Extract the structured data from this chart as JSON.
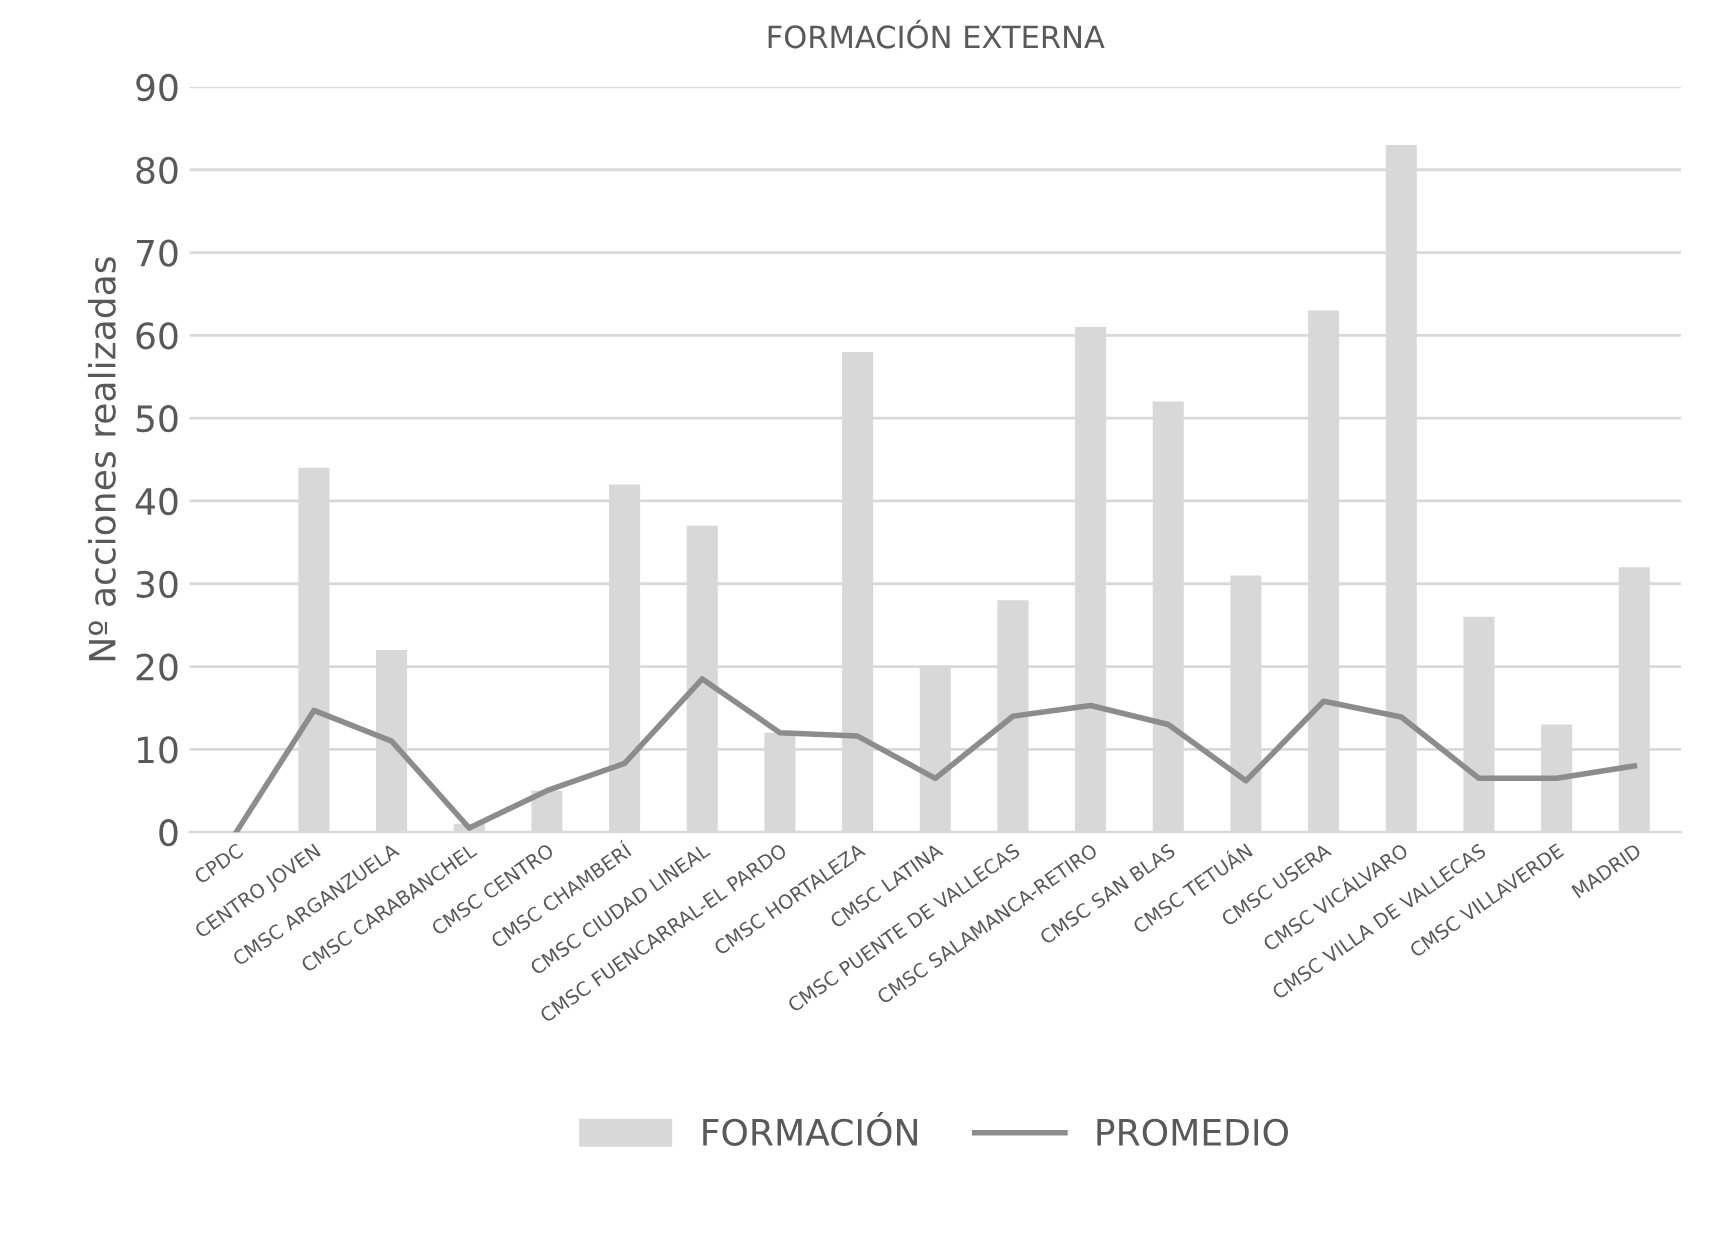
{
  "chart_data": {
    "type": "bar",
    "title": "FORMACIÓN EXTERNA",
    "ylabel": "Nº acciones realizadas",
    "categories": [
      "CPDC",
      "CENTRO JOVEN",
      "CMSC ARGANZUELA",
      "CMSC CARABANCHEL",
      "CMSC CENTRO",
      "CMSC CHAMBERÍ",
      "CMSC CIUDAD LINEAL",
      "CMSC FUENCARRAL-EL PARDO",
      "CMSC HORTALEZA",
      "CMSC LATINA",
      "CMSC PUENTE DE VALLECAS",
      "CMSC SALAMANCA-RETIRO",
      "CMSC SAN BLAS",
      "CMSC TETUÁN",
      "CMSC USERA",
      "CMSC VICÁLVARO",
      "CMSC VILLA DE VALLECAS",
      "CMSC VILLAVERDE",
      "MADRID"
    ],
    "series": [
      {
        "name": "FORMACIÓN",
        "color": "#d9d8d9",
        "values": [
          0,
          44,
          22,
          1,
          5,
          42,
          37,
          12,
          58,
          20,
          28,
          61,
          52,
          31,
          63,
          83,
          26,
          13,
          32
        ]
      },
      {
        "name": "PROMEDIO",
        "type": "line",
        "color": "#8c8c8c",
        "values": [
          0,
          14.7,
          11,
          0.5,
          5,
          8.3,
          18.5,
          12,
          11.6,
          6.5,
          14,
          15.3,
          13,
          6.2,
          15.8,
          13.9,
          6.5,
          6.5,
          8
        ]
      }
    ],
    "ylim": [
      0,
      90
    ],
    "yticks": [
      0,
      10,
      20,
      30,
      40,
      50,
      60,
      70,
      80,
      90
    ],
    "grid": "y",
    "legend": "bottom",
    "marker": "none",
    "line_style": "solid"
  }
}
